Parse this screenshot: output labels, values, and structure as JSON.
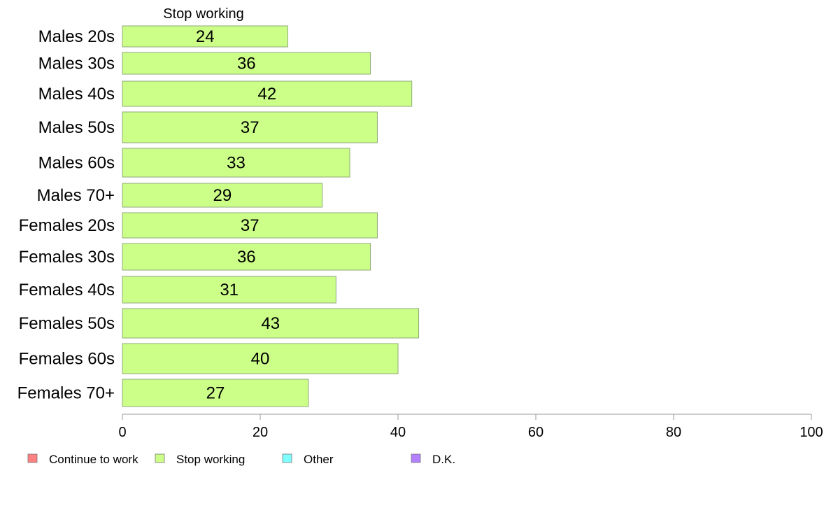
{
  "chart_data": {
    "type": "bar",
    "orientation": "horizontal",
    "series_title": "Stop working",
    "categories": [
      "Males 20s",
      "Males 30s",
      "Males 40s",
      "Males 50s",
      "Males 60s",
      "Males 70+",
      "Females 20s",
      "Females 30s",
      "Females 40s",
      "Females 50s",
      "Females 60s",
      "Females 70+"
    ],
    "series": [
      {
        "name": "Stop working",
        "values": [
          24,
          36,
          42,
          37,
          33,
          29,
          37,
          36,
          31,
          43,
          40,
          27
        ],
        "color": "#ccff88"
      }
    ],
    "xlim": [
      0,
      100
    ],
    "xticks": [
      0,
      20,
      40,
      60,
      80,
      100
    ],
    "grid": false,
    "legend_position": "bottom",
    "legend": [
      {
        "label": "Continue to work",
        "color": "#ff8080"
      },
      {
        "label": "Stop working",
        "color": "#ccff88"
      },
      {
        "label": "Other",
        "color": "#80ffff"
      },
      {
        "label": "D.K.",
        "color": "#b380ff"
      }
    ],
    "bar_border_color": "#8fa87a",
    "axis_color": "#999999"
  }
}
